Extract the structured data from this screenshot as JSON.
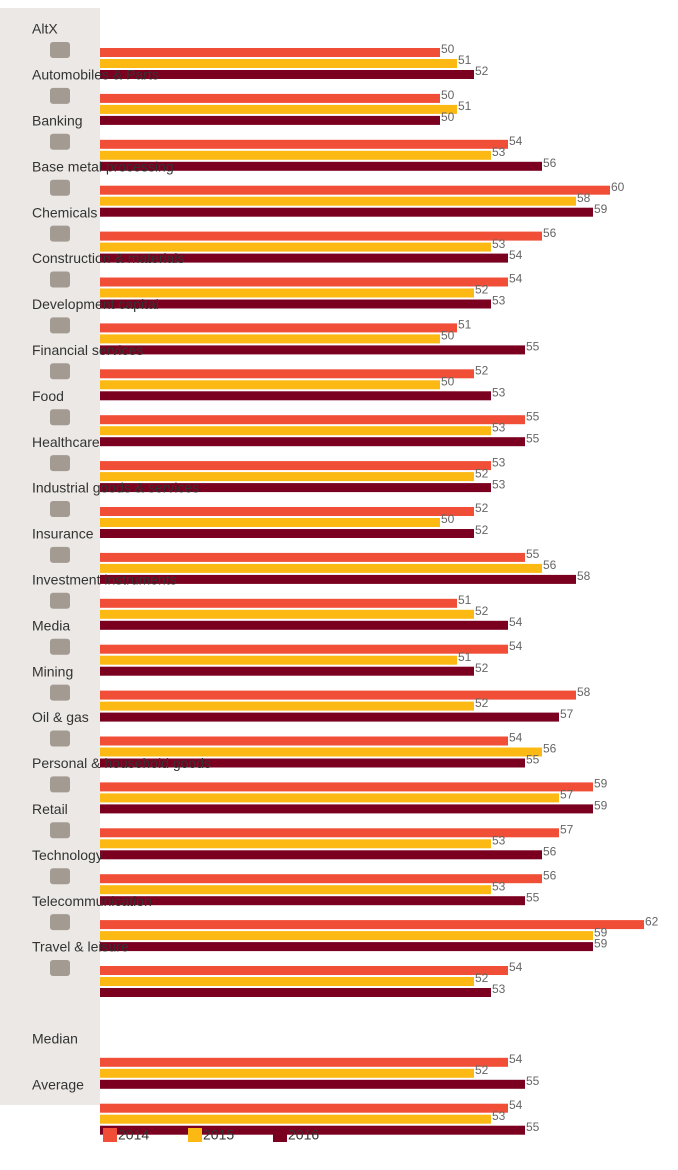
{
  "chart_data": {
    "type": "hbar",
    "categories": [
      "AltX",
      "Automobiles & Parts",
      "Banking",
      "Base metal processing",
      "Chemicals",
      "Construction & materials",
      "Development capital",
      "Financial services",
      "Food",
      "Healthcare",
      "Industrial goods & services",
      "Insurance",
      "Investment instruments",
      "Media",
      "Mining",
      "Oil & gas",
      "Personal & household goods",
      "Retail",
      "Technology",
      "Telecommunication",
      "Travel & leisure",
      "Median",
      "Average"
    ],
    "series": [
      {
        "name": "2014",
        "color": "#f04e37",
        "values": [
          50,
          50,
          54,
          60,
          56,
          54,
          51,
          52,
          55,
          53,
          52,
          55,
          51,
          54,
          58,
          54,
          59,
          57,
          56,
          62,
          54,
          54,
          54
        ]
      },
      {
        "name": "2015",
        "color": "#fdb913",
        "values": [
          51,
          51,
          53,
          58,
          53,
          52,
          50,
          50,
          53,
          52,
          50,
          56,
          52,
          51,
          52,
          56,
          57,
          53,
          53,
          59,
          52,
          52,
          53
        ]
      },
      {
        "name": "2016",
        "color": "#7b0020",
        "values": [
          52,
          50,
          56,
          59,
          54,
          53,
          55,
          53,
          55,
          53,
          52,
          58,
          54,
          52,
          57,
          55,
          59,
          56,
          55,
          59,
          53,
          55,
          55
        ]
      }
    ],
    "xlim": [
      30,
      64
    ]
  }
}
